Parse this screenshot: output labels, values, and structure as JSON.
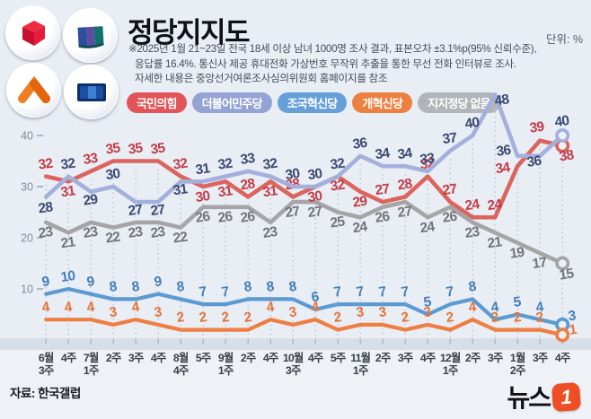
{
  "header": {
    "title": "정당지지도",
    "unit_label": "단위: %",
    "note_lines": [
      "※2025년 1월 21~23일 전국 18세 이상 남녀 1000명 조사 결과, 표본오차 ±3.1%p(95% 신뢰수준),",
      "응답률 16.4%. 통신사 제공 휴대전화 가상번호 무작위 추출을 통한 무선 전화 인터뷰로 조사.",
      "자세한 내용은 중앙선거여론조사심의위원회 홈페이지를 참조"
    ]
  },
  "legend": [
    {
      "label": "국민의힘",
      "color": "#e15458"
    },
    {
      "label": "더불어민주당",
      "color": "#94a3d3"
    },
    {
      "label": "조국혁신당",
      "color": "#66a0d8"
    },
    {
      "label": "개혁신당",
      "color": "#ec8040"
    },
    {
      "label": "지지정당 없음",
      "color": "#b1b4b9"
    }
  ],
  "chart_data": {
    "type": "line",
    "title": "정당지지도",
    "unit": "%",
    "ylim": [
      0,
      50
    ],
    "yticks": [
      10,
      20,
      30,
      40
    ],
    "grid": "vertical-dashed",
    "legend_position": "top",
    "categories": [
      [
        "6월",
        "3주"
      ],
      [
        "4주"
      ],
      [
        "7월",
        "1주"
      ],
      [
        "2주"
      ],
      [
        "3주"
      ],
      [
        "4주"
      ],
      [
        "8월",
        "4주"
      ],
      [
        "5주"
      ],
      [
        "9월",
        "1주"
      ],
      [
        "2주"
      ],
      [
        "4주"
      ],
      [
        "10월",
        "3주"
      ],
      [
        "4주"
      ],
      [
        "5주"
      ],
      [
        "11월",
        "1주"
      ],
      [
        "2주"
      ],
      [
        "3주"
      ],
      [
        "4주"
      ],
      [
        "12월",
        "1주"
      ],
      [
        "2주"
      ],
      [
        "3주"
      ],
      [
        "1월",
        "2주"
      ],
      [
        "3주"
      ],
      [
        "4주"
      ]
    ],
    "series": [
      {
        "id": "ppp",
        "name": "국민의힘",
        "color": "#db655e",
        "label_color": "#c13d47",
        "values": [
          32,
          31,
          33,
          35,
          35,
          35,
          32,
          30,
          31,
          28,
          31,
          28,
          30,
          32,
          29,
          27,
          28,
          32,
          27,
          24,
          24,
          34,
          39,
          38
        ]
      },
      {
        "id": "dpk",
        "name": "더불어민주당",
        "color": "#a3b0dc",
        "label_color": "#3a4a70",
        "values": [
          28,
          32,
          29,
          30,
          27,
          27,
          31,
          31,
          32,
          33,
          32,
          30,
          30,
          32,
          36,
          34,
          34,
          33,
          37,
          40,
          48,
          36,
          36,
          40
        ]
      },
      {
        "id": "rkp",
        "name": "조국혁신당",
        "color": "#5c9ad2",
        "label_color": "#4580b8",
        "values": [
          9,
          10,
          9,
          8,
          8,
          9,
          8,
          7,
          7,
          8,
          8,
          8,
          6,
          7,
          7,
          7,
          7,
          5,
          7,
          8,
          4,
          5,
          4,
          3
        ]
      },
      {
        "id": "reform",
        "name": "개혁신당",
        "color": "#ee7e41",
        "label_color": "#e3763c",
        "values": [
          4,
          4,
          4,
          3,
          4,
          3,
          2,
          2,
          2,
          2,
          4,
          3,
          4,
          2,
          3,
          3,
          2,
          3,
          2,
          4,
          2,
          2,
          2,
          1
        ]
      },
      {
        "id": "none",
        "name": "지지정당 없음",
        "color": "#a5a5a7",
        "label_color": "#717479",
        "values": [
          23,
          21,
          23,
          22,
          23,
          23,
          22,
          26,
          26,
          26,
          23,
          27,
          27,
          25,
          24,
          26,
          27,
          24,
          26,
          23,
          21,
          19,
          17,
          15
        ]
      }
    ]
  },
  "footer": {
    "source": "자료: 한국갤럽",
    "press_logo_text": "뉴스",
    "press_logo_number": "1"
  }
}
